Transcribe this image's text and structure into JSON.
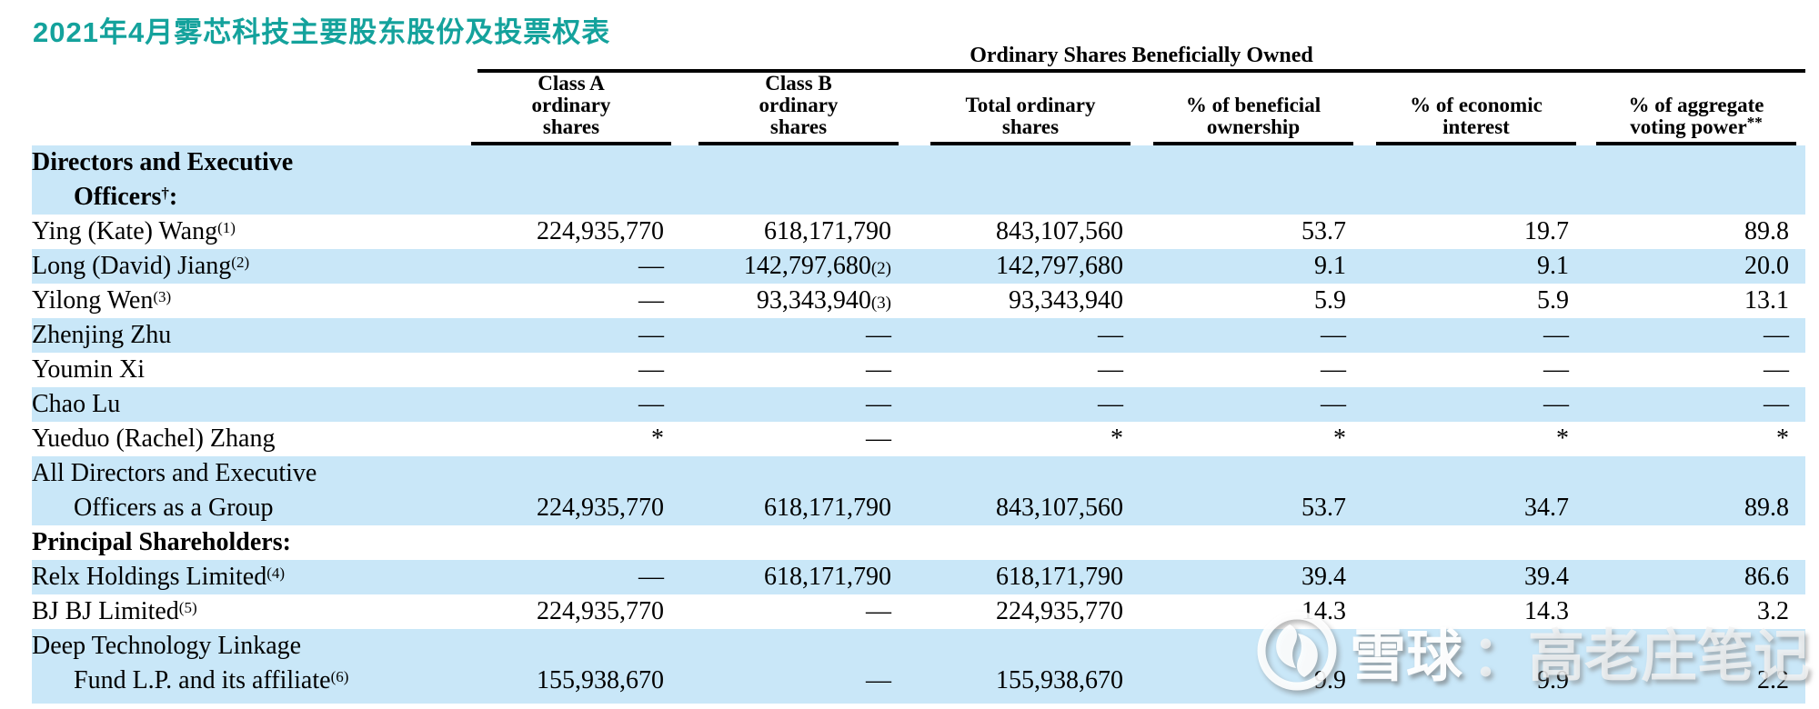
{
  "title": "2021年4月雾芯科技主要股东股份及投票权表",
  "colors": {
    "title_teal": "#14a29c",
    "row_blue": "#c9e7f8",
    "rule_black": "#000000",
    "watermark_white": "#ffffff"
  },
  "table": {
    "group_header": "Ordinary Shares Beneficially Owned",
    "columns": [
      {
        "lines": [
          "Class A",
          "ordinary",
          "shares"
        ]
      },
      {
        "lines": [
          "Class B",
          "ordinary",
          "shares"
        ]
      },
      {
        "lines": [
          "Total ordinary",
          "shares"
        ]
      },
      {
        "lines": [
          "% of beneficial",
          "ownership"
        ]
      },
      {
        "lines": [
          "% of economic",
          "interest"
        ]
      },
      {
        "lines": [
          "% of aggregate",
          "voting power"
        ],
        "sup": "**"
      }
    ],
    "rows": [
      {
        "bg": "blue",
        "bold": true,
        "lines": [
          {
            "pre": "Directors and Executive"
          },
          {
            "pre": "Officers",
            "sup": "†",
            "post": ":",
            "indent": true
          }
        ],
        "cells": [
          null,
          null,
          null,
          null,
          null,
          null
        ]
      },
      {
        "bg": "white",
        "lines": [
          {
            "pre": "Ying (Kate) Wang",
            "sup": "(1)"
          }
        ],
        "cells": [
          {
            "v": "224,935,770"
          },
          {
            "v": "618,171,790"
          },
          {
            "v": "843,107,560"
          },
          {
            "v": "53.7"
          },
          {
            "v": "19.7"
          },
          {
            "v": "89.8"
          }
        ]
      },
      {
        "bg": "blue",
        "lines": [
          {
            "pre": "Long (David) Jiang",
            "sup": "(2)"
          }
        ],
        "cells": [
          {
            "v": "—"
          },
          {
            "v": "142,797,680",
            "ref": "(2)"
          },
          {
            "v": "142,797,680"
          },
          {
            "v": "9.1"
          },
          {
            "v": "9.1"
          },
          {
            "v": "20.0"
          }
        ]
      },
      {
        "bg": "white",
        "lines": [
          {
            "pre": "Yilong Wen",
            "sup": "(3)"
          }
        ],
        "cells": [
          {
            "v": "—"
          },
          {
            "v": "93,343,940",
            "ref": "(3)"
          },
          {
            "v": "93,343,940"
          },
          {
            "v": "5.9"
          },
          {
            "v": "5.9"
          },
          {
            "v": "13.1"
          }
        ]
      },
      {
        "bg": "blue",
        "lines": [
          {
            "pre": "Zhenjing Zhu"
          }
        ],
        "cells": [
          {
            "v": "—"
          },
          {
            "v": "—"
          },
          {
            "v": "—"
          },
          {
            "v": "—"
          },
          {
            "v": "—"
          },
          {
            "v": "—"
          }
        ]
      },
      {
        "bg": "white",
        "lines": [
          {
            "pre": "Youmin Xi"
          }
        ],
        "cells": [
          {
            "v": "—"
          },
          {
            "v": "—"
          },
          {
            "v": "—"
          },
          {
            "v": "—"
          },
          {
            "v": "—"
          },
          {
            "v": "—"
          }
        ]
      },
      {
        "bg": "blue",
        "lines": [
          {
            "pre": "Chao Lu"
          }
        ],
        "cells": [
          {
            "v": "—"
          },
          {
            "v": "—"
          },
          {
            "v": "—"
          },
          {
            "v": "—"
          },
          {
            "v": "—"
          },
          {
            "v": "—"
          }
        ]
      },
      {
        "bg": "white",
        "lines": [
          {
            "pre": "Yueduo (Rachel) Zhang"
          }
        ],
        "cells": [
          {
            "v": "*"
          },
          {
            "v": "—"
          },
          {
            "v": "*"
          },
          {
            "v": "*"
          },
          {
            "v": "*"
          },
          {
            "v": "*"
          }
        ]
      },
      {
        "bg": "blue",
        "lines": [
          {
            "pre": "All Directors and Executive"
          },
          {
            "pre": "Officers as a Group",
            "indent": true
          }
        ],
        "cells": [
          {
            "v": "224,935,770"
          },
          {
            "v": "618,171,790"
          },
          {
            "v": "843,107,560"
          },
          {
            "v": "53.7"
          },
          {
            "v": "34.7"
          },
          {
            "v": "89.8"
          }
        ]
      },
      {
        "bg": "white",
        "bold": true,
        "lines": [
          {
            "pre": "Principal Shareholders:"
          }
        ],
        "cells": [
          null,
          null,
          null,
          null,
          null,
          null
        ]
      },
      {
        "bg": "blue",
        "lines": [
          {
            "pre": "Relx Holdings Limited",
            "sup": "(4)"
          }
        ],
        "cells": [
          {
            "v": "—"
          },
          {
            "v": "618,171,790"
          },
          {
            "v": "618,171,790"
          },
          {
            "v": "39.4"
          },
          {
            "v": "39.4"
          },
          {
            "v": "86.6"
          }
        ]
      },
      {
        "bg": "white",
        "lines": [
          {
            "pre": "BJ BJ Limited",
            "sup": "(5)"
          }
        ],
        "cells": [
          {
            "v": "224,935,770"
          },
          {
            "v": "—"
          },
          {
            "v": "224,935,770"
          },
          {
            "v": "14.3"
          },
          {
            "v": "14.3"
          },
          {
            "v": "3.2"
          }
        ]
      },
      {
        "bg": "blue",
        "cls": "deep",
        "lines": [
          {
            "pre": "Deep Technology Linkage"
          },
          {
            "pre": "Fund L.P. and its affiliate",
            "sup": "(6)",
            "indent": true
          }
        ],
        "cells": [
          {
            "v": "155,938,670"
          },
          {
            "v": "—"
          },
          {
            "v": "155,938,670"
          },
          {
            "v": "9.9"
          },
          {
            "v": "9.9"
          },
          {
            "v": "2.2"
          }
        ]
      }
    ]
  },
  "watermark": {
    "icon": "xueqiu-snowball-logo",
    "brand": "雪球",
    "label": "：高老庄笔记"
  }
}
